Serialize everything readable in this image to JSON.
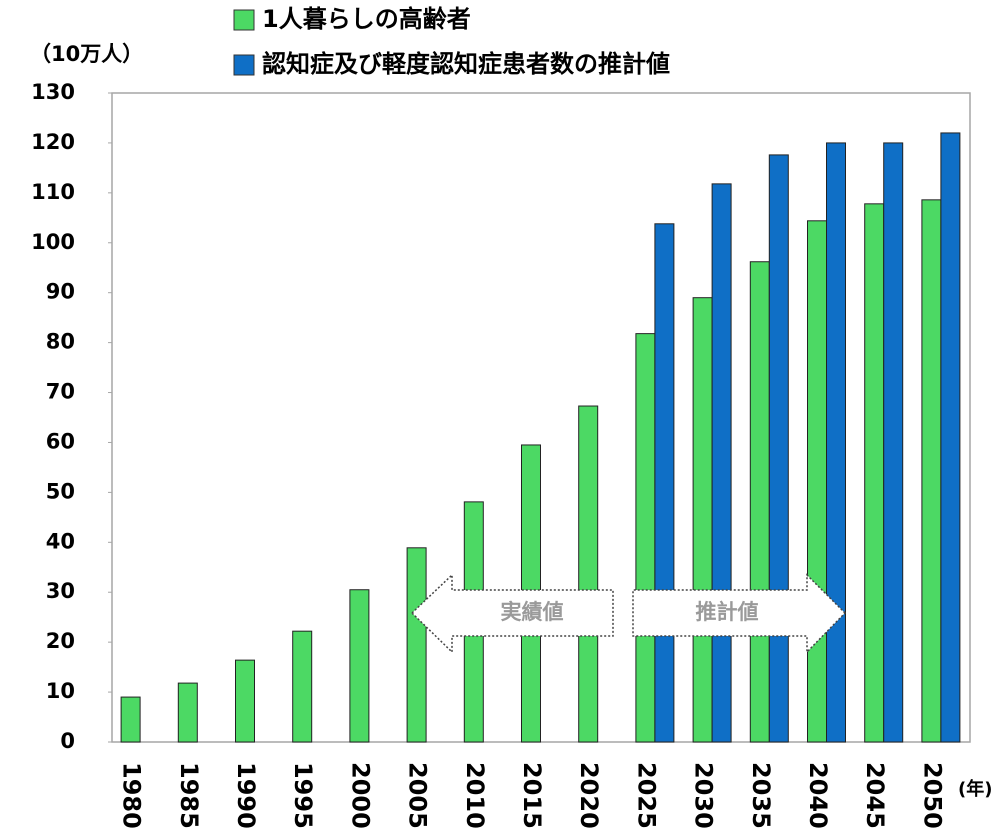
{
  "chart_data": {
    "type": "bar",
    "y_axis_label": "（10万人）",
    "x_axis_label": "(年)",
    "categories": [
      "1980",
      "1985",
      "1990",
      "1995",
      "2000",
      "2005",
      "2010",
      "2015",
      "2020",
      "2025",
      "2030",
      "2035",
      "2040",
      "2045",
      "2050"
    ],
    "series": [
      {
        "name": "1人暮らしの高齢者",
        "color": "#4cd964",
        "values": [
          9.0,
          11.8,
          16.4,
          22.2,
          30.5,
          38.9,
          48.1,
          59.5,
          67.3,
          81.8,
          89.0,
          96.2,
          104.4,
          107.8,
          108.6
        ]
      },
      {
        "name": "認知症及び軽度認知症患者数の推計値",
        "color": "#0f6fc6",
        "values": [
          null,
          null,
          null,
          null,
          null,
          null,
          null,
          null,
          null,
          103.8,
          111.8,
          117.6,
          120.0,
          120.0,
          122.0
        ]
      }
    ],
    "annotations": [
      "実績値",
      "推計値"
    ],
    "ylim": [
      0,
      130
    ],
    "yticks": [
      0,
      10,
      20,
      30,
      40,
      50,
      60,
      70,
      80,
      90,
      100,
      110,
      120,
      130
    ],
    "grid": false
  }
}
